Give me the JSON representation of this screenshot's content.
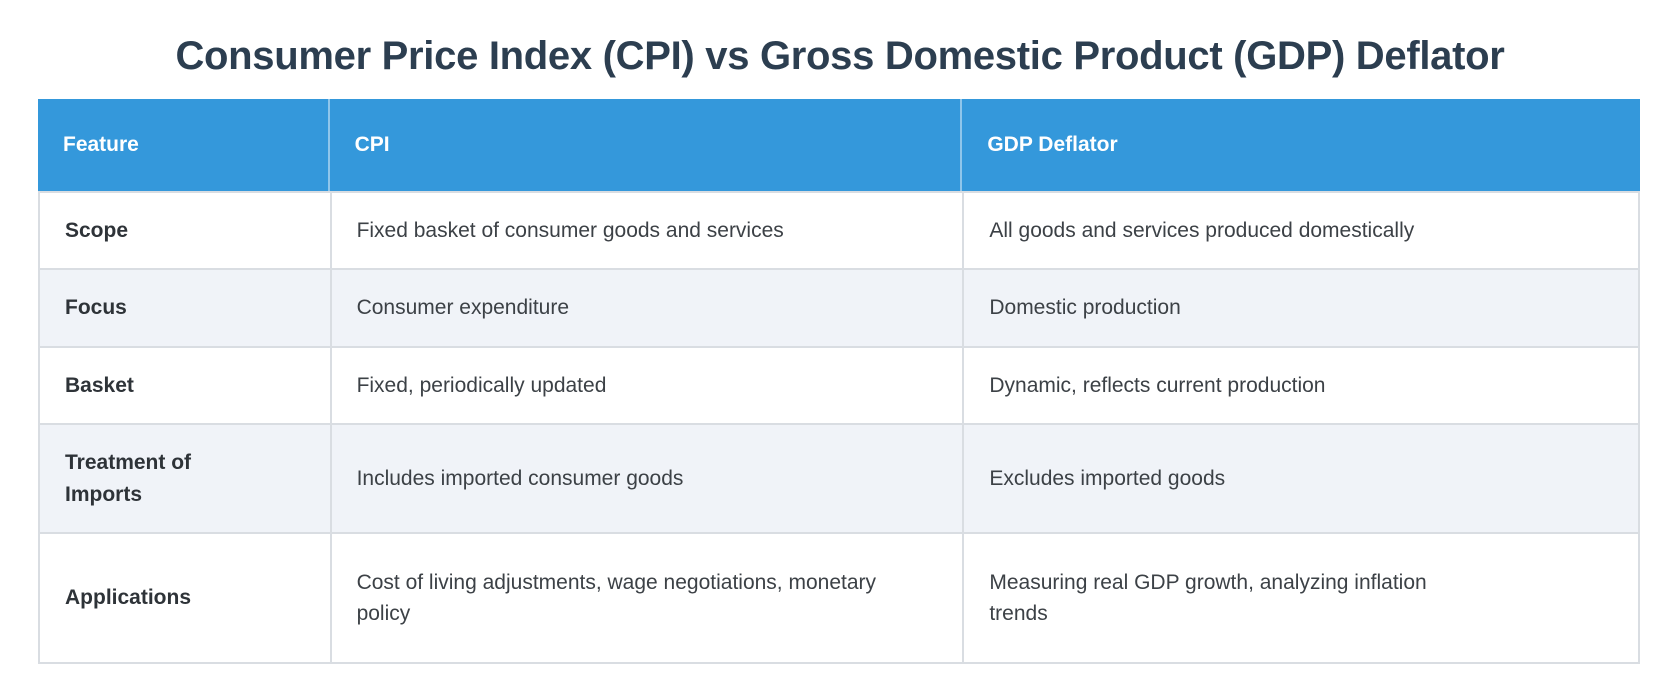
{
  "title": "Consumer Price Index (CPI) vs Gross Domestic Product (GDP) Deflator",
  "colors": {
    "header_bg": "#3498db",
    "header_text": "#ffffff",
    "alt_row_bg": "#f0f3f8",
    "border": "#d9dde2",
    "title_text": "#2c3e50",
    "body_text": "#3c4146"
  },
  "table": {
    "columns": [
      "Feature",
      "CPI",
      "GDP Deflator"
    ],
    "rows": [
      {
        "feature": "Scope",
        "cpi": "Fixed basket of consumer goods and services",
        "gdp_deflator": "All goods and services produced domestically"
      },
      {
        "feature": "Focus",
        "cpi": "Consumer expenditure",
        "gdp_deflator": "Domestic production"
      },
      {
        "feature": "Basket",
        "cpi": "Fixed, periodically updated",
        "gdp_deflator": "Dynamic, reflects current production"
      },
      {
        "feature": "Treatment of\nImports",
        "cpi": "Includes imported consumer goods",
        "gdp_deflator": "Excludes imported goods"
      },
      {
        "feature": "Applications",
        "cpi": "Cost of living adjustments, wage negotiations, monetary\npolicy",
        "gdp_deflator": "Measuring real GDP growth, analyzing inflation\ntrends"
      }
    ]
  }
}
